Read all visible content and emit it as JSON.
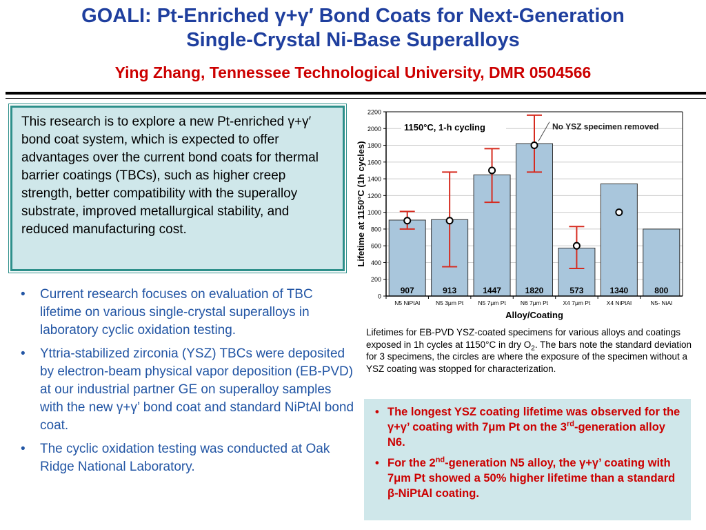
{
  "header": {
    "title_line1": "GOALI: Pt-Enriched γ+γ′ Bond Coats for Next-Generation",
    "title_line2": "Single-Crystal Ni-Base Superalloys",
    "subtitle": "Ying Zhang, Tennessee Technological University, DMR 0504566"
  },
  "intro": {
    "text": "This research is to explore a new Pt-enriched γ+γ′ bond coat system, which is expected to offer advantages over the current bond coats for thermal barrier coatings (TBCs), such as higher creep strength, better compatibility with the superalloy substrate, improved metallurgical stability, and reduced manufacturing cost."
  },
  "bullets": [
    "Current research focuses on evaluation of TBC lifetime on various single-crystal superalloys in laboratory cyclic oxidation testing.",
    "Yttria-stabilized zirconia (YSZ) TBCs were deposited by electron-beam physical vapor deposition (EB-PVD) at our industrial partner GE on superalloy samples with the new γ+γ’ bond coat and standard NiPtAl bond coat.",
    "The cyclic oxidation testing was conducted at Oak Ridge National Laboratory."
  ],
  "caption": {
    "part1": "Lifetimes for EB-PVD YSZ-coated specimens for various alloys and coatings exposed in 1h cycles at 1150°C in dry O",
    "sub": "2",
    "part2": ".  The bars note the standard deviation for 3 specimens, the circles are where the exposure of the specimen without a YSZ coating was stopped for characterization."
  },
  "findings": {
    "item1_part1": "The longest YSZ coating lifetime was observed for the γ+γ’ coating with 7μm Pt on the 3",
    "item1_sup": "rd",
    "item1_part2": "-generation alloy N6.",
    "item2_part1": "For the 2",
    "item2_sup": "nd",
    "item2_part2": "-generation N5 alloy, the γ+γ’ coating with 7μm Pt showed a 50% higher lifetime than a standard β-NiPtAl coating."
  },
  "colors": {
    "title": "#1f3f9e",
    "subtitle": "#cc0000",
    "bar_fill": "#a9c6dc",
    "error_bar": "#d62b1f",
    "box_fill": "#cfe7ea"
  },
  "chart_data": {
    "type": "bar",
    "annotation_condition": "1150°C, 1-h cycling",
    "annotation_note": "No YSZ specimen removed",
    "xlabel": "Alloy/Coating",
    "ylabel": "Lifetime at 1150°C (1h cycles)",
    "ylim": [
      0,
      2200
    ],
    "yticks": [
      0,
      200,
      400,
      600,
      800,
      1000,
      1200,
      1400,
      1600,
      1800,
      2000,
      2200
    ],
    "categories": [
      "N5 NiPtAl",
      "N5 3μm Pt",
      "N5 7μm Pt",
      "N6 7μm Pt",
      "X4 7μm Pt",
      "X4 NiPtAl",
      "N5- NiAl"
    ],
    "values": [
      907,
      913,
      1447,
      1820,
      573,
      1340,
      800
    ],
    "value_labels": [
      "907",
      "913",
      "1447",
      "1820",
      "573",
      "1340",
      "800"
    ],
    "error_low": [
      800,
      350,
      1120,
      1480,
      330,
      null,
      null
    ],
    "error_high": [
      1010,
      1480,
      1760,
      2160,
      830,
      null,
      null
    ],
    "circles": [
      900,
      900,
      1500,
      1800,
      600,
      1000,
      null
    ],
    "grid": true,
    "legend": "none"
  }
}
